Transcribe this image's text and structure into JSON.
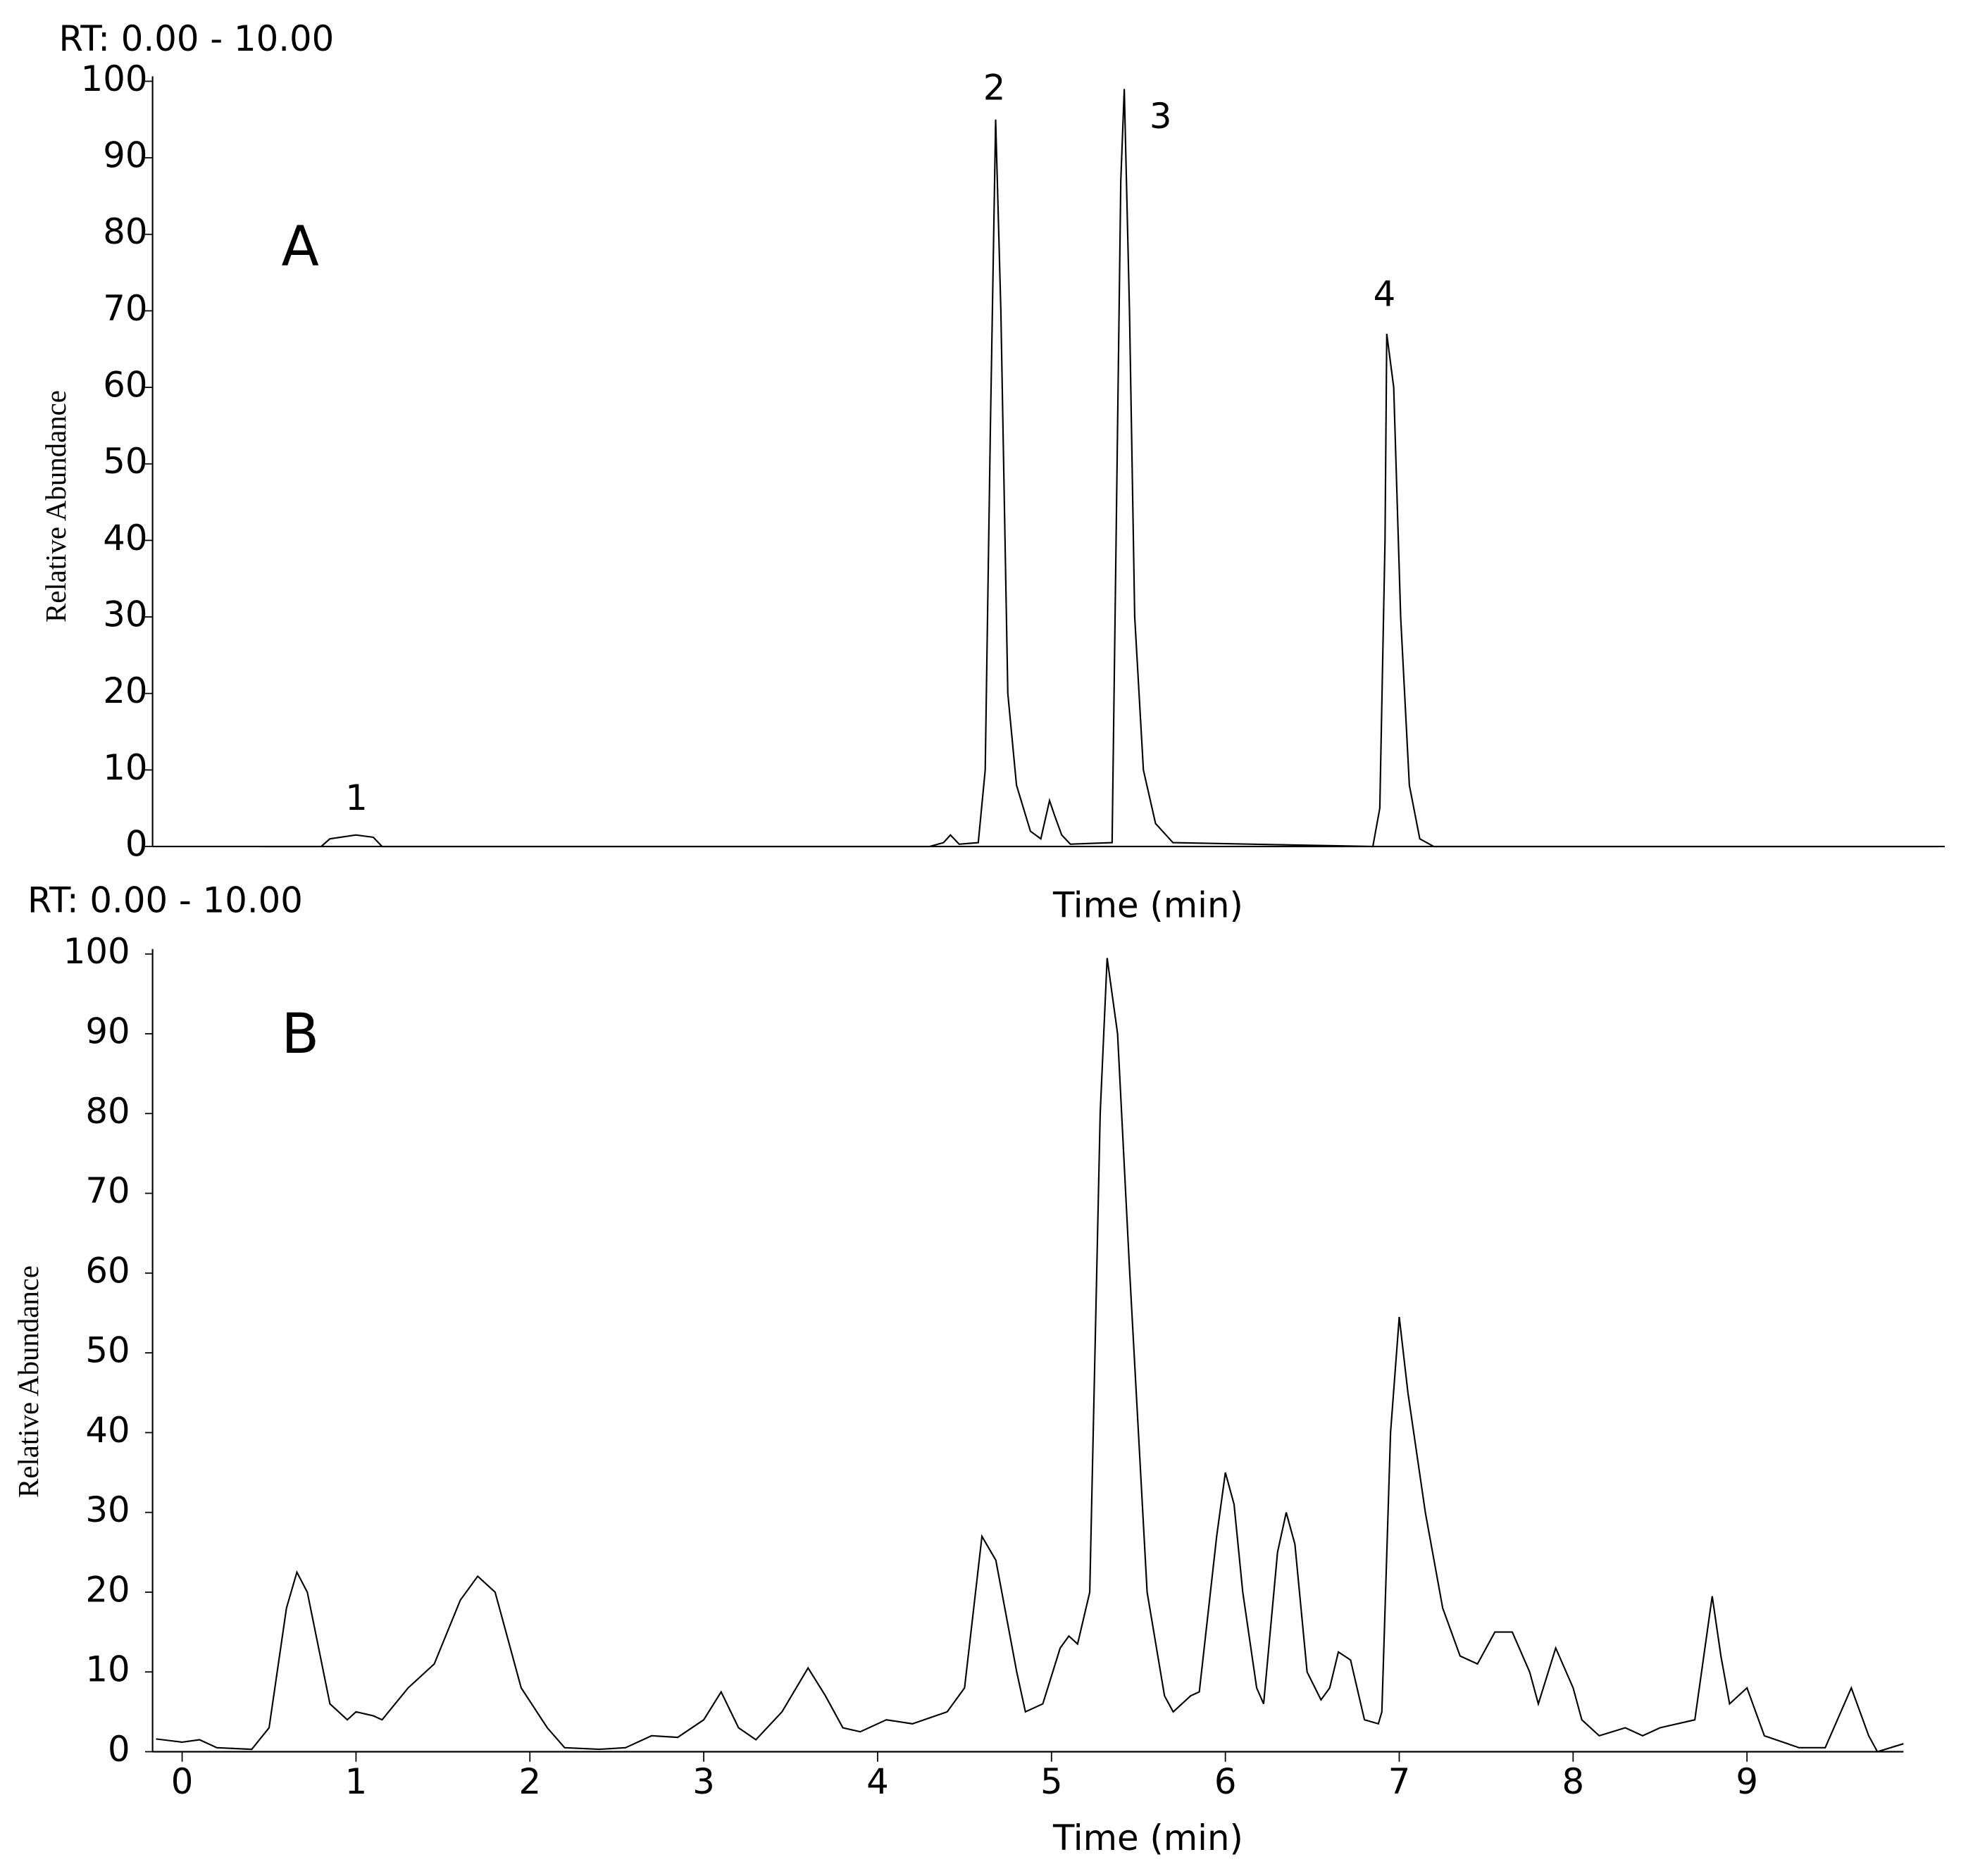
{
  "chart_data": [
    {
      "type": "line",
      "title": "RT: 0.00 - 10.00",
      "ylabel": "Relative Abundance",
      "xlabel": "Time (min)",
      "panel_label": "A",
      "annotations": [
        "1",
        "2",
        "3",
        "4"
      ],
      "xlim": [
        -0.17,
        10.14
      ],
      "ylim": [
        0,
        100
      ],
      "yticks": [
        0,
        10,
        20,
        30,
        40,
        50,
        60,
        70,
        80,
        90,
        100
      ],
      "color": "#000000",
      "x": [
        0.45,
        0.8,
        0.85,
        1.0,
        1.1,
        1.15,
        4.3,
        4.38,
        4.42,
        4.47,
        4.58,
        4.62,
        4.65,
        4.68,
        4.71,
        4.75,
        4.8,
        4.88,
        4.94,
        4.99,
        5.02,
        5.06,
        5.11,
        5.35,
        5.37,
        5.4,
        5.42,
        5.45,
        5.48,
        5.53,
        5.6,
        5.7,
        6.85,
        6.89,
        6.92,
        6.93,
        6.97,
        7.01,
        7.06,
        7.12,
        7.2,
        10.1
      ],
      "values": [
        0,
        0,
        1,
        1.5,
        1.2,
        0,
        0,
        0.5,
        1.5,
        0.3,
        0.5,
        10,
        55,
        95,
        70,
        20,
        8,
        2,
        1,
        6,
        4,
        1.5,
        0.3,
        0.5,
        35,
        87,
        99,
        70,
        30,
        10,
        3,
        0.5,
        0,
        5,
        40,
        67,
        60,
        30,
        8,
        1,
        0,
        0
      ]
    },
    {
      "type": "line",
      "title": "RT: 0.00 - 10.00",
      "ylabel": "Relative Abundance",
      "xlabel": "Time (min)",
      "panel_label": "B",
      "xlim": [
        -0.17,
        9.9
      ],
      "ylim": [
        0,
        100
      ],
      "yticks": [
        0,
        10,
        20,
        30,
        40,
        50,
        60,
        70,
        80,
        90,
        100
      ],
      "xticks": [
        0,
        1,
        2,
        3,
        4,
        5,
        6,
        7,
        8,
        9
      ],
      "color": "#000000",
      "x": [
        -0.15,
        0,
        0.1,
        0.2,
        0.4,
        0.5,
        0.6,
        0.66,
        0.72,
        0.85,
        0.95,
        1.0,
        1.1,
        1.15,
        1.3,
        1.45,
        1.6,
        1.7,
        1.8,
        1.95,
        2.1,
        2.2,
        2.4,
        2.55,
        2.7,
        2.85,
        3.0,
        3.1,
        3.2,
        3.3,
        3.45,
        3.6,
        3.7,
        3.8,
        3.9,
        4.05,
        4.2,
        4.4,
        4.5,
        4.6,
        4.68,
        4.8,
        4.85,
        4.95,
        5.05,
        5.1,
        5.15,
        5.22,
        5.28,
        5.32,
        5.38,
        5.45,
        5.55,
        5.65,
        5.7,
        5.8,
        5.85,
        5.95,
        6.0,
        6.05,
        6.1,
        6.18,
        6.22,
        6.3,
        6.35,
        6.4,
        6.47,
        6.55,
        6.6,
        6.65,
        6.72,
        6.8,
        6.88,
        6.9,
        6.95,
        7.0,
        7.05,
        7.15,
        7.25,
        7.35,
        7.45,
        7.55,
        7.65,
        7.75,
        7.8,
        7.9,
        8.0,
        8.05,
        8.15,
        8.3,
        8.4,
        8.5,
        8.7,
        8.8,
        8.85,
        8.9,
        9.0,
        9.1,
        9.3,
        9.45,
        9.6,
        9.7,
        9.75,
        9.9
      ],
      "values": [
        1.6,
        1.2,
        1.5,
        0.5,
        0.3,
        3,
        18,
        22.5,
        20,
        6,
        4,
        5,
        4.5,
        4,
        8,
        11,
        19,
        22,
        20,
        8,
        3,
        0.5,
        0.3,
        0.5,
        2,
        1.8,
        4,
        7.5,
        3,
        1.5,
        5,
        10.5,
        7,
        3,
        2.5,
        4,
        3.5,
        5,
        8,
        27,
        24,
        10,
        5,
        6,
        13,
        14.5,
        13.5,
        20,
        80,
        99.5,
        90,
        60,
        20,
        7,
        5,
        7,
        7.5,
        27,
        35,
        31,
        20,
        8,
        6,
        25,
        30,
        26,
        10,
        6.5,
        8,
        12.5,
        11.5,
        4,
        3.5,
        5,
        40,
        54.5,
        45,
        30,
        18,
        12,
        11,
        15,
        15,
        10,
        6,
        13,
        8,
        4,
        2,
        3,
        2,
        3,
        4,
        19.5,
        12,
        6,
        8,
        2,
        0.5,
        0.5,
        8,
        2,
        0,
        1
      ]
    }
  ]
}
